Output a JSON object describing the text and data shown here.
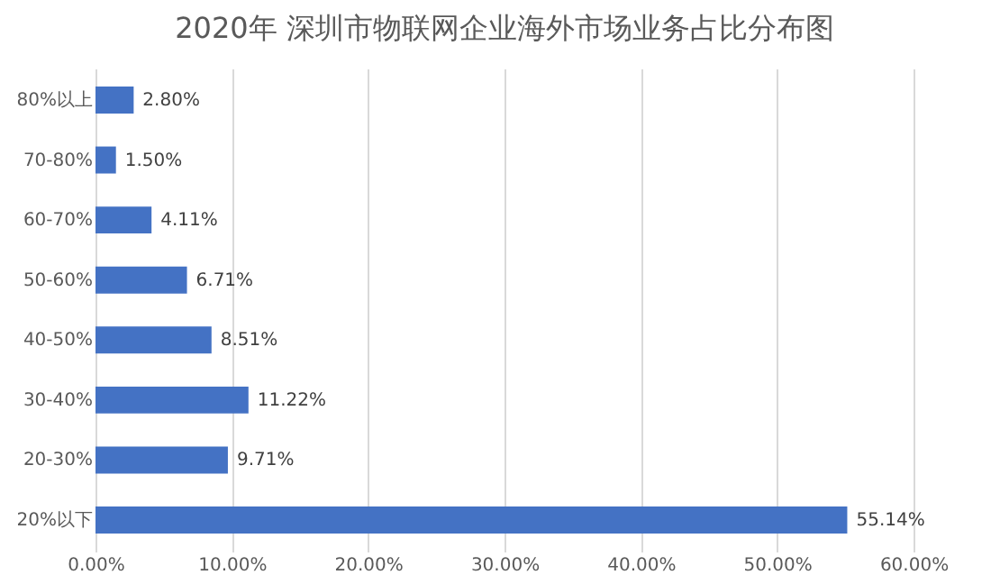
{
  "chart_data": {
    "type": "bar",
    "orientation": "horizontal",
    "title": "2020年 深圳市物联网企业海外市场业务占比分布图",
    "categories": [
      "80%以上",
      "70-80%",
      "60-70%",
      "50-60%",
      "40-50%",
      "30-40%",
      "20-30%",
      "20%以下"
    ],
    "values": [
      2.8,
      1.5,
      4.11,
      6.71,
      8.51,
      11.22,
      9.71,
      55.14
    ],
    "value_labels": [
      "2.80%",
      "1.50%",
      "4.11%",
      "6.71%",
      "8.51%",
      "11.22%",
      "9.71%",
      "55.14%"
    ],
    "color": "#4472c4",
    "xlim": [
      0,
      60
    ],
    "xticks": [
      {
        "value": 0,
        "label": "0.00%"
      },
      {
        "value": 10,
        "label": "10.00%"
      },
      {
        "value": 20,
        "label": "20.00%"
      },
      {
        "value": 30,
        "label": "30.00%"
      },
      {
        "value": 40,
        "label": "40.00%"
      },
      {
        "value": 50,
        "label": "50.00%"
      },
      {
        "value": 60,
        "label": "60.00%"
      }
    ],
    "grid": "x"
  }
}
